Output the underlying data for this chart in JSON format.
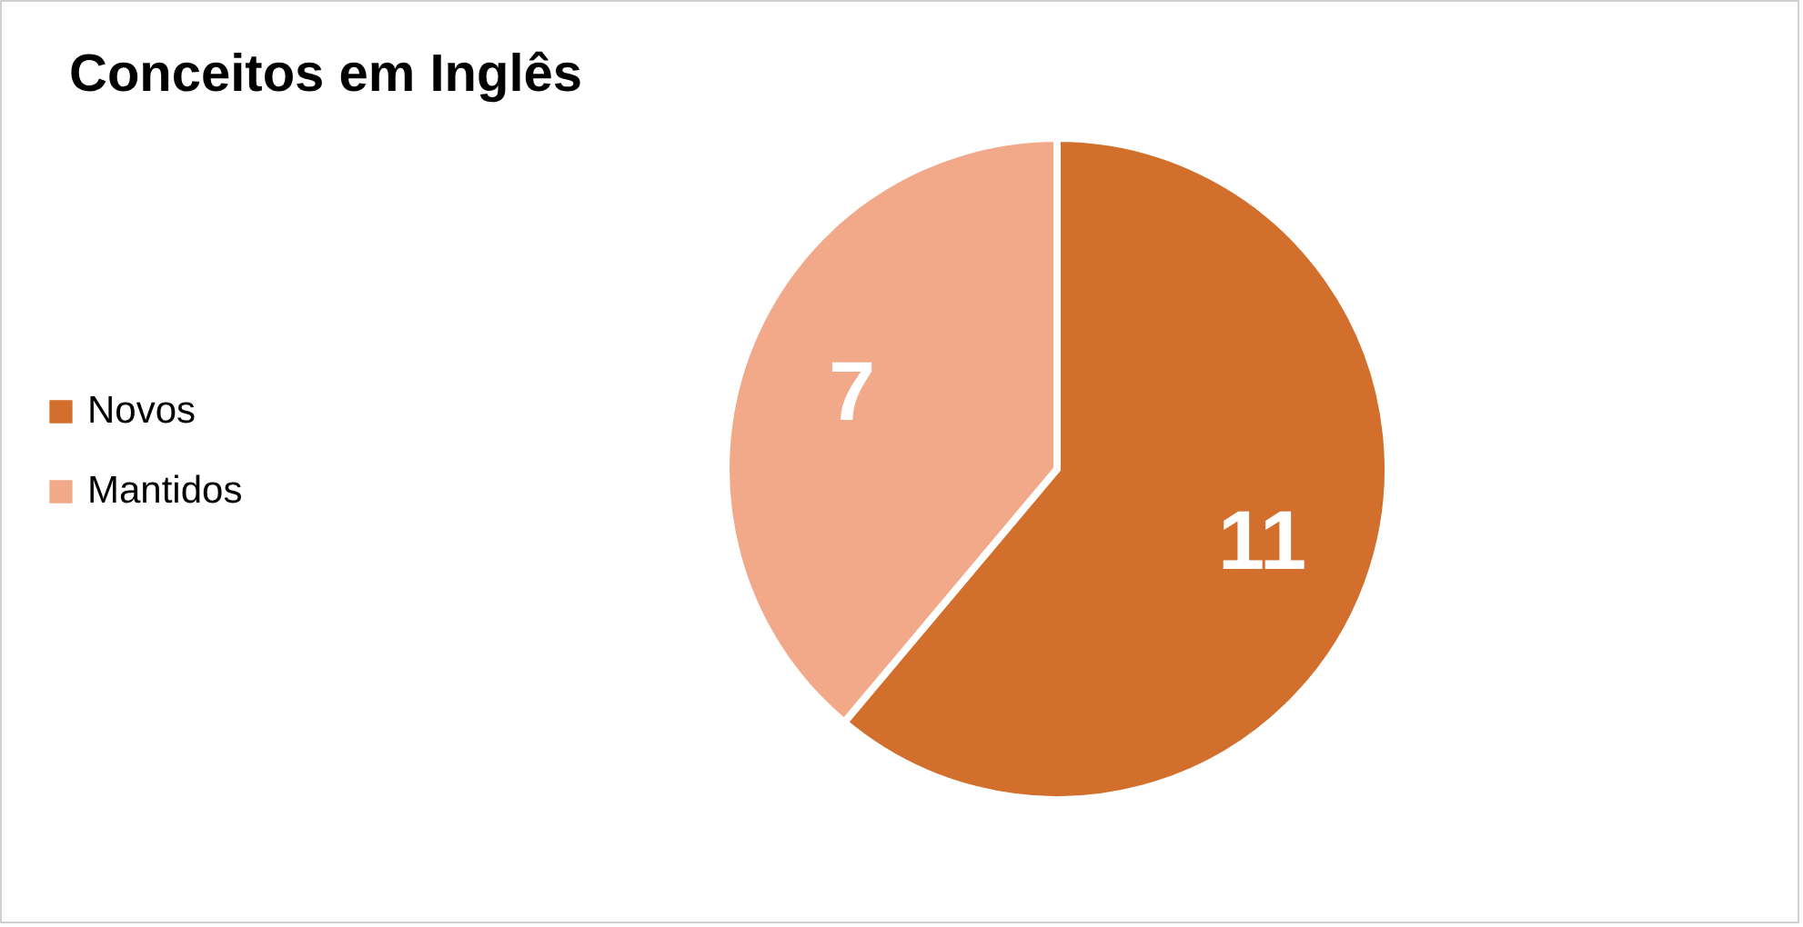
{
  "chart_data": {
    "type": "pie",
    "title": "Conceitos em Inglês",
    "categories": [
      "Novos",
      "Mantidos"
    ],
    "values": [
      11,
      7
    ],
    "colors": [
      "#d36f2c",
      "#f1a98a"
    ],
    "data_labels": true,
    "legend": "left"
  }
}
